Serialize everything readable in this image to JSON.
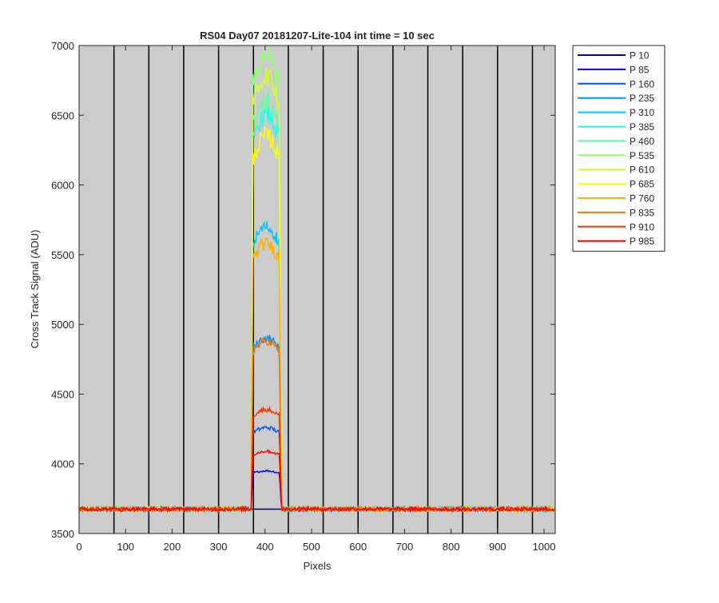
{
  "chart_data": {
    "type": "line",
    "title": "RS04 Day07 20181207-Lite-104 int time = 10 sec",
    "xlabel": "Pixels",
    "ylabel": "Cross Track Signal (ADU)",
    "xlim": [
      0,
      1024
    ],
    "ylim": [
      3500,
      7000
    ],
    "xticks": [
      0,
      100,
      200,
      300,
      400,
      500,
      600,
      700,
      800,
      900,
      1000
    ],
    "yticks": [
      3500,
      4000,
      4500,
      5000,
      5500,
      6000,
      6500,
      7000
    ],
    "plot_background": "#cccccc",
    "legend_position": "outside-right",
    "vertical_lines": [
      75,
      150,
      225,
      300,
      375,
      450,
      525,
      600,
      675,
      750,
      825,
      900,
      975
    ],
    "baseline": 3675,
    "signal_window": [
      372,
      433
    ],
    "series": [
      {
        "name": "P 10",
        "color": "#000090",
        "peak": 3675
      },
      {
        "name": "P 85",
        "color": "#0000ff",
        "peak": 3950
      },
      {
        "name": "P 160",
        "color": "#0050ff",
        "peak": 4260
      },
      {
        "name": "P 235",
        "color": "#0090ff",
        "peak": 4900
      },
      {
        "name": "P 310",
        "color": "#00c8ff",
        "peak": 5700
      },
      {
        "name": "P 385",
        "color": "#20ffdf",
        "peak": 6500
      },
      {
        "name": "P 460",
        "color": "#60ffa0",
        "peak": 6600
      },
      {
        "name": "P 535",
        "color": "#90ff70",
        "peak": 6930
      },
      {
        "name": "P 610",
        "color": "#d0ff30",
        "peak": 6780
      },
      {
        "name": "P 685",
        "color": "#ffff00",
        "peak": 6350
      },
      {
        "name": "P 760",
        "color": "#ffb000",
        "peak": 5580
      },
      {
        "name": "P 835",
        "color": "#ff7000",
        "peak": 4880
      },
      {
        "name": "P 910",
        "color": "#ff3000",
        "peak": 4390
      },
      {
        "name": "P 985",
        "color": "#ff0000",
        "peak": 4090
      }
    ]
  }
}
